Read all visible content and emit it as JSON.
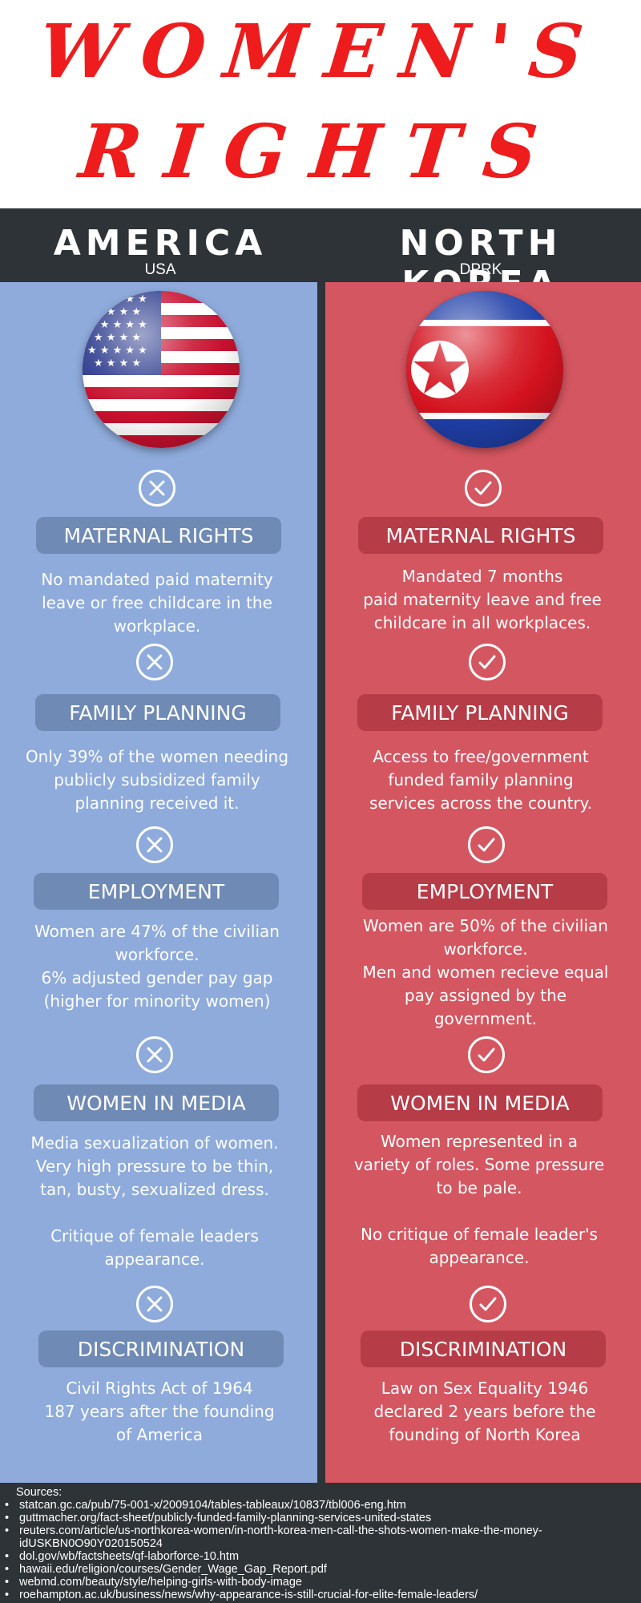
{
  "title": {
    "line1": "WOMEN'S",
    "line2": "RIGHTS"
  },
  "colors": {
    "america_column": "#8eabdb",
    "north_korea_column": "#d45660",
    "title_red": "#ee1c1c",
    "dark_band": "#2e3337"
  },
  "left": {
    "name": "AMERICA",
    "abbr": "USA",
    "mark_icon": "x-circle-icon",
    "sections": [
      {
        "heading": "MATERNAL RIGHTS",
        "lines": [
          "No mandated paid maternity",
          "leave or free childcare in the",
          "workplace."
        ]
      },
      {
        "heading": "FAMILY PLANNING",
        "lines": [
          "Only 39% of the women needing",
          "publicly subsidized family",
          "planning received it."
        ]
      },
      {
        "heading": "EMPLOYMENT",
        "lines": [
          "Women are 47% of the civilian",
          "workforce.",
          "6% adjusted gender pay gap",
          "(higher for minority women)"
        ]
      },
      {
        "heading": "WOMEN IN MEDIA",
        "lines": [
          "Media sexualization of women.",
          "Very high pressure to be thin,",
          "tan, busty, sexualized dress.",
          "",
          "Critique of female leaders",
          "appearance."
        ]
      },
      {
        "heading": "DISCRIMINATION",
        "lines": [
          "Civil Rights Act of 1964",
          "187 years after the founding",
          "of America"
        ]
      }
    ]
  },
  "right": {
    "name": "NORTH KOREA",
    "abbr": "DPRK",
    "mark_icon": "check-circle-icon",
    "sections": [
      {
        "heading": "MATERNAL RIGHTS",
        "lines": [
          "Mandated 7 months",
          "paid maternity leave and free",
          "childcare in all workplaces."
        ]
      },
      {
        "heading": "FAMILY PLANNING",
        "lines": [
          "Access to free/government",
          "funded family planning",
          "services across the country."
        ]
      },
      {
        "heading": "EMPLOYMENT",
        "lines": [
          "Women are 50% of the civilian",
          "workforce.",
          "Men and women recieve equal",
          "pay assigned by the",
          "government."
        ]
      },
      {
        "heading": "WOMEN IN MEDIA",
        "lines": [
          "Women represented in a",
          "variety of roles. Some pressure",
          "to be pale.",
          "",
          "No critique of female leader's",
          "appearance."
        ]
      },
      {
        "heading": "DISCRIMINATION",
        "lines": [
          "Law on Sex Equality 1946",
          "declared 2 years before the",
          "founding of North Korea"
        ]
      }
    ]
  },
  "sources": {
    "title": "Sources:",
    "items": [
      "statcan.gc.ca/pub/75-001-x/2009104/tables-tableaux/10837/tbl006-eng.htm",
      "guttmacher.org/fact-sheet/publicly-funded-family-planning-services-united-states",
      "reuters.com/article/us-northkorea-women/in-north-korea-men-call-the-shots-women-make-the-money-idUSKBN0O90Y020150524",
      "dol.gov/wb/factsheets/qf-laborforce-10.htm",
      "hawaii.edu/religion/courses/Gender_Wage_Gap_Report.pdf",
      "webmd.com/beauty/style/helping-girls-with-body-image",
      "roehampton.ac.uk/business/news/why-appearance-is-still-crucial-for-elite-female-leaders/"
    ]
  }
}
